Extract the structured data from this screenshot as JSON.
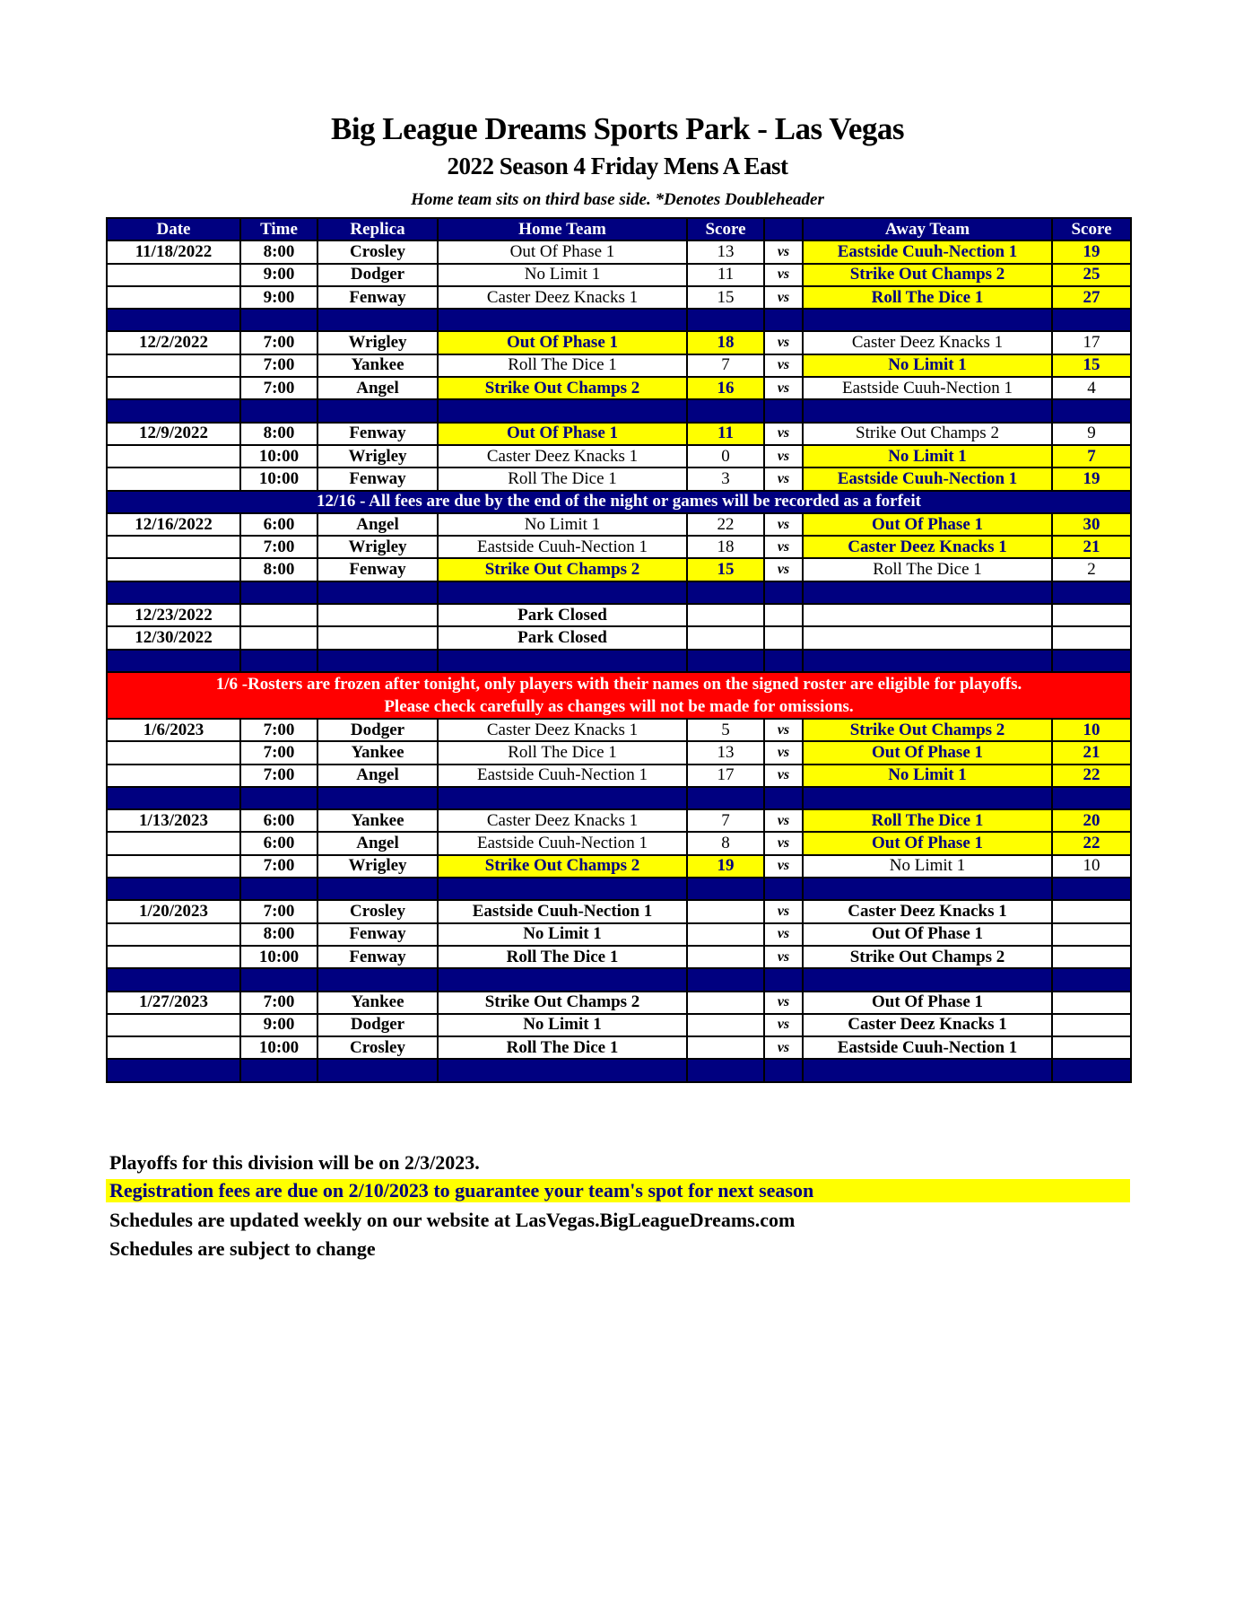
{
  "header": {
    "title": "Big League Dreams Sports Park - Las Vegas",
    "subtitle": "2022 Season 4 Friday Mens A East",
    "note": "Home team sits on third base side.  *Denotes Doubleheader"
  },
  "columns": [
    "Date",
    "Time",
    "Replica",
    "Home Team",
    "Score",
    "",
    "Away Team",
    "Score"
  ],
  "vs_label": "vs",
  "rows": [
    {
      "type": "game",
      "date": "11/18/2022",
      "time": "8:00",
      "replica": "Crosley",
      "home": "Out Of Phase 1",
      "home_score": "13",
      "away": "Eastside Cuuh-Nection 1",
      "away_score": "19",
      "winner": "away"
    },
    {
      "type": "game",
      "date": "",
      "time": "9:00",
      "replica": "Dodger",
      "home": "No Limit 1",
      "home_score": "11",
      "away": "Strike Out Champs 2",
      "away_score": "25",
      "winner": "away"
    },
    {
      "type": "game",
      "date": "",
      "time": "9:00",
      "replica": "Fenway",
      "home": "Caster Deez Knacks 1",
      "home_score": "15",
      "away": "Roll The Dice 1",
      "away_score": "27",
      "winner": "away"
    },
    {
      "type": "spacer"
    },
    {
      "type": "game",
      "date": "12/2/2022",
      "time": "7:00",
      "replica": "Wrigley",
      "home": "Out Of Phase 1",
      "home_score": "18",
      "away": "Caster Deez Knacks 1",
      "away_score": "17",
      "winner": "home"
    },
    {
      "type": "game",
      "date": "",
      "time": "7:00",
      "replica": "Yankee",
      "home": "Roll The Dice 1",
      "home_score": "7",
      "away": "No Limit 1",
      "away_score": "15",
      "winner": "away"
    },
    {
      "type": "game",
      "date": "",
      "time": "7:00",
      "replica": "Angel",
      "home": "Strike Out Champs 2",
      "home_score": "16",
      "away": "Eastside Cuuh-Nection 1",
      "away_score": "4",
      "winner": "home"
    },
    {
      "type": "spacer"
    },
    {
      "type": "game",
      "date": "12/9/2022",
      "time": "8:00",
      "replica": "Fenway",
      "home": "Out Of Phase 1",
      "home_score": "11",
      "away": "Strike Out Champs 2",
      "away_score": "9",
      "winner": "home"
    },
    {
      "type": "game",
      "date": "",
      "time": "10:00",
      "replica": "Wrigley",
      "home": "Caster Deez Knacks 1",
      "home_score": "0",
      "away": "No Limit 1",
      "away_score": "7",
      "winner": "away"
    },
    {
      "type": "game",
      "date": "",
      "time": "10:00",
      "replica": "Fenway",
      "home": "Roll The Dice 1",
      "home_score": "3",
      "away": "Eastside Cuuh-Nection 1",
      "away_score": "19",
      "winner": "away"
    },
    {
      "type": "notice",
      "text": "12/16 - All fees are due by the end of the night or games will be recorded as a forfeit"
    },
    {
      "type": "game",
      "date": "12/16/2022",
      "time": "6:00",
      "replica": "Angel",
      "home": "No Limit 1",
      "home_score": "22",
      "away": "Out Of Phase 1",
      "away_score": "30",
      "winner": "away"
    },
    {
      "type": "game",
      "date": "",
      "time": "7:00",
      "replica": "Wrigley",
      "home": "Eastside Cuuh-Nection 1",
      "home_score": "18",
      "away": "Caster Deez Knacks 1",
      "away_score": "21",
      "winner": "away"
    },
    {
      "type": "game",
      "date": "",
      "time": "8:00",
      "replica": "Fenway",
      "home": "Strike Out Champs 2",
      "home_score": "15",
      "away": "Roll The Dice 1",
      "away_score": "2",
      "winner": "home"
    },
    {
      "type": "spacer"
    },
    {
      "type": "closed",
      "date": "12/23/2022",
      "text": "Park Closed"
    },
    {
      "type": "closed",
      "date": "12/30/2022",
      "text": "Park Closed"
    },
    {
      "type": "spacer"
    },
    {
      "type": "alert",
      "line1": "1/6 -Rosters are frozen after tonight, only players with their names on the signed roster are eligible for playoffs.",
      "line2": "Please check carefully as changes will not be made for omissions."
    },
    {
      "type": "game",
      "date": "1/6/2023",
      "time": "7:00",
      "replica": "Dodger",
      "home": "Caster Deez Knacks 1",
      "home_score": "5",
      "away": "Strike Out Champs 2",
      "away_score": "10",
      "winner": "away"
    },
    {
      "type": "game",
      "date": "",
      "time": "7:00",
      "replica": "Yankee",
      "home": "Roll The Dice 1",
      "home_score": "13",
      "away": "Out Of Phase 1",
      "away_score": "21",
      "winner": "away"
    },
    {
      "type": "game",
      "date": "",
      "time": "7:00",
      "replica": "Angel",
      "home": "Eastside Cuuh-Nection 1",
      "home_score": "17",
      "away": "No Limit 1",
      "away_score": "22",
      "winner": "away"
    },
    {
      "type": "spacer"
    },
    {
      "type": "game",
      "date": "1/13/2023",
      "time": "6:00",
      "replica": "Yankee",
      "home": "Caster Deez Knacks 1",
      "home_score": "7",
      "away": "Roll The Dice 1",
      "away_score": "20",
      "winner": "away"
    },
    {
      "type": "game",
      "date": "",
      "time": "6:00",
      "replica": "Angel",
      "home": "Eastside Cuuh-Nection 1",
      "home_score": "8",
      "away": "Out Of Phase 1",
      "away_score": "22",
      "winner": "away"
    },
    {
      "type": "game",
      "date": "",
      "time": "7:00",
      "replica": "Wrigley",
      "home": "Strike Out Champs 2",
      "home_score": "19",
      "away": "No Limit 1",
      "away_score": "10",
      "winner": "home"
    },
    {
      "type": "spacer"
    },
    {
      "type": "upcoming",
      "date": "1/20/2023",
      "time": "7:00",
      "replica": "Crosley",
      "home": "Eastside Cuuh-Nection 1",
      "home_score": "",
      "away": "Caster Deez Knacks 1",
      "away_score": ""
    },
    {
      "type": "upcoming",
      "date": "",
      "time": "8:00",
      "replica": "Fenway",
      "home": "No Limit 1",
      "home_score": "",
      "away": "Out Of Phase 1",
      "away_score": ""
    },
    {
      "type": "upcoming",
      "date": "",
      "time": "10:00",
      "replica": "Fenway",
      "home": "Roll The Dice 1",
      "home_score": "",
      "away": "Strike Out Champs 2",
      "away_score": ""
    },
    {
      "type": "spacer"
    },
    {
      "type": "upcoming",
      "date": "1/27/2023",
      "time": "7:00",
      "replica": "Yankee",
      "home": "Strike Out Champs 2",
      "home_score": "",
      "away": "Out Of Phase 1",
      "away_score": ""
    },
    {
      "type": "upcoming",
      "date": "",
      "time": "9:00",
      "replica": "Dodger",
      "home": "No Limit 1",
      "home_score": "",
      "away": "Caster Deez Knacks 1",
      "away_score": ""
    },
    {
      "type": "upcoming",
      "date": "",
      "time": "10:00",
      "replica": "Crosley",
      "home": "Roll The Dice 1",
      "home_score": "",
      "away": "Eastside Cuuh-Nection 1",
      "away_score": ""
    },
    {
      "type": "spacer"
    }
  ],
  "footer": {
    "playoffs": "Playoffs for this division will be on 2/3/2023.",
    "registration": "Registration fees are due on 2/10/2023 to guarantee your team's spot for next season",
    "website": "Schedules are updated weekly on our website at LasVegas.BigLeagueDreams.com",
    "change": "Schedules are subject to change"
  },
  "colors": {
    "header_bg": "#000080",
    "highlight": "#ffff00",
    "alert": "#ff0000"
  }
}
